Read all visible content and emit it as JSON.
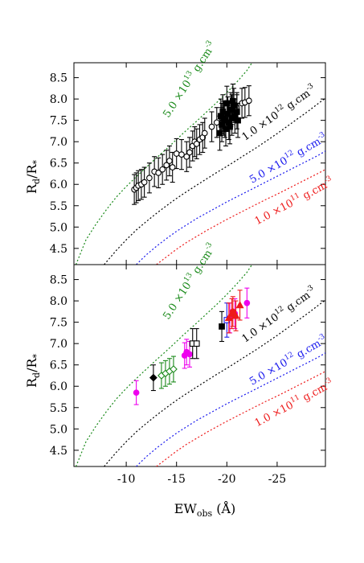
{
  "chart_data": [
    {
      "type": "scatter",
      "panel": "top",
      "xlabel": "",
      "ylabel": "R_d/R_*",
      "xlim": [
        -4.8,
        -29.8
      ],
      "ylim": [
        4.12,
        8.85
      ],
      "yticks": [
        4.5,
        5.0,
        5.5,
        6.0,
        6.5,
        7.0,
        7.5,
        8.0,
        8.5
      ],
      "ytick_labels": [
        "4.5",
        "5.0",
        "5.5",
        "6.0",
        "6.5",
        "7.0",
        "7.5",
        "8.0",
        "8.5"
      ],
      "curves": [
        {
          "label_base": "5.0 ×10",
          "label_exp": "13",
          "label_unit": " g.cm",
          "label_unit_exp": "-3",
          "color": "#1a8a1a",
          "x": [
            -5.0,
            -6.0,
            -7.0,
            -8.0,
            -9.0,
            -10.0,
            -11.0,
            -12.0,
            -13.0,
            -14.0,
            -15.0,
            -16.0,
            -17.0,
            -18.0,
            -19.0,
            -20.0,
            -21.0,
            -22.0,
            -22.5
          ],
          "y": [
            4.12,
            4.7,
            5.07,
            5.4,
            5.7,
            5.95,
            6.18,
            6.4,
            6.62,
            6.83,
            7.05,
            7.27,
            7.48,
            7.7,
            7.92,
            8.15,
            8.4,
            8.67,
            8.85
          ]
        },
        {
          "label_base": "1.0 ×10",
          "label_exp": "12",
          "label_unit": " g.cm",
          "label_unit_exp": "-3",
          "color": "#000000",
          "x": [
            -7.8,
            -9.0,
            -10.0,
            -11.0,
            -12.0,
            -13.0,
            -14.0,
            -15.0,
            -16.0,
            -17.0,
            -18.0,
            -19.0,
            -20.0,
            -21.0,
            -22.0,
            -23.0,
            -24.0,
            -25.0,
            -26.0,
            -27.0,
            -28.0,
            -29.0,
            -29.8
          ],
          "y": [
            4.12,
            4.45,
            4.7,
            4.93,
            5.13,
            5.32,
            5.5,
            5.67,
            5.83,
            5.98,
            6.13,
            6.28,
            6.42,
            6.57,
            6.72,
            6.87,
            7.03,
            7.19,
            7.36,
            7.53,
            7.7,
            7.88,
            8.02
          ]
        },
        {
          "label_base": "5.0 ×10",
          "label_exp": "12",
          "label_unit": " g.cm",
          "label_unit_exp": "-3",
          "color": "#1a1aee",
          "x": [
            -11.0,
            -12.0,
            -13.0,
            -14.0,
            -15.0,
            -16.0,
            -17.0,
            -18.0,
            -19.0,
            -20.0,
            -21.0,
            -22.0,
            -23.0,
            -24.0,
            -25.0,
            -26.0,
            -27.0,
            -28.0,
            -29.0,
            -29.8
          ],
          "y": [
            4.12,
            4.35,
            4.55,
            4.73,
            4.9,
            5.05,
            5.2,
            5.33,
            5.46,
            5.59,
            5.71,
            5.83,
            5.95,
            6.07,
            6.19,
            6.31,
            6.43,
            6.55,
            6.67,
            6.78
          ]
        },
        {
          "label_base": "1.0 ×10",
          "label_exp": "11",
          "label_unit": " g.cm",
          "label_unit_exp": "-3",
          "color": "#ee1a1a",
          "x": [
            -13.0,
            -14.0,
            -15.0,
            -16.0,
            -17.0,
            -18.0,
            -19.0,
            -20.0,
            -21.0,
            -22.0,
            -23.0,
            -24.0,
            -25.0,
            -26.0,
            -27.0,
            -28.0,
            -29.0,
            -29.8
          ],
          "y": [
            4.12,
            4.3,
            4.48,
            4.64,
            4.78,
            4.92,
            5.05,
            5.18,
            5.3,
            5.42,
            5.54,
            5.66,
            5.77,
            5.89,
            6.01,
            6.13,
            6.25,
            6.35
          ]
        }
      ],
      "series": [
        {
          "name": "",
          "marker": "open-circle",
          "color": "#000000",
          "points": [
            {
              "x": -10.8,
              "y": 5.88,
              "err": 0.35
            },
            {
              "x": -11.0,
              "y": 5.92,
              "err": 0.35
            },
            {
              "x": -11.2,
              "y": 5.97,
              "err": 0.35
            },
            {
              "x": -11.5,
              "y": 6.0,
              "err": 0.35
            },
            {
              "x": -11.8,
              "y": 6.05,
              "err": 0.35
            },
            {
              "x": -12.3,
              "y": 6.15,
              "err": 0.35
            },
            {
              "x": -12.8,
              "y": 6.3,
              "err": 0.35
            },
            {
              "x": -13.2,
              "y": 6.27,
              "err": 0.35
            },
            {
              "x": -13.6,
              "y": 6.35,
              "err": 0.35
            },
            {
              "x": -14.0,
              "y": 6.45,
              "err": 0.35
            },
            {
              "x": -14.3,
              "y": 6.55,
              "err": 0.35
            },
            {
              "x": -14.6,
              "y": 6.4,
              "err": 0.35
            },
            {
              "x": -15.0,
              "y": 6.72,
              "err": 0.35
            },
            {
              "x": -15.5,
              "y": 6.7,
              "err": 0.35
            },
            {
              "x": -16.0,
              "y": 6.65,
              "err": 0.35
            },
            {
              "x": -16.3,
              "y": 6.75,
              "err": 0.35
            },
            {
              "x": -16.6,
              "y": 6.9,
              "err": 0.35
            },
            {
              "x": -16.8,
              "y": 7.0,
              "err": 0.35
            },
            {
              "x": -17.0,
              "y": 6.95,
              "err": 0.35
            },
            {
              "x": -17.3,
              "y": 7.05,
              "err": 0.35
            },
            {
              "x": -17.6,
              "y": 7.1,
              "err": 0.35
            },
            {
              "x": -17.8,
              "y": 7.2,
              "err": 0.35
            },
            {
              "x": -18.5,
              "y": 7.35,
              "err": 0.35
            },
            {
              "x": -19.0,
              "y": 7.45,
              "err": 0.35
            },
            {
              "x": -19.5,
              "y": 7.55,
              "err": 0.35
            },
            {
              "x": -20.5,
              "y": 7.75,
              "err": 0.35
            },
            {
              "x": -21.0,
              "y": 7.8,
              "err": 0.35
            },
            {
              "x": -21.5,
              "y": 7.9,
              "err": 0.35
            },
            {
              "x": -21.8,
              "y": 7.92,
              "err": 0.35
            },
            {
              "x": -22.2,
              "y": 7.96,
              "err": 0.35
            }
          ]
        },
        {
          "name": "",
          "marker": "filled-square",
          "color": "#000000",
          "points": [
            {
              "x": -19.3,
              "y": 7.2,
              "err": 0.4
            },
            {
              "x": -19.5,
              "y": 7.4,
              "err": 0.4
            },
            {
              "x": -19.7,
              "y": 7.55,
              "err": 0.4
            },
            {
              "x": -19.9,
              "y": 7.3,
              "err": 0.4
            },
            {
              "x": -20.1,
              "y": 7.65,
              "err": 0.4
            },
            {
              "x": -20.2,
              "y": 7.45,
              "err": 0.4
            },
            {
              "x": -20.4,
              "y": 7.75,
              "err": 0.4
            },
            {
              "x": -20.5,
              "y": 7.55,
              "err": 0.4
            },
            {
              "x": -20.7,
              "y": 7.85,
              "err": 0.4
            },
            {
              "x": -20.8,
              "y": 7.6,
              "err": 0.4
            },
            {
              "x": -21.0,
              "y": 7.7,
              "err": 0.4
            },
            {
              "x": -19.6,
              "y": 7.7,
              "err": 0.4
            },
            {
              "x": -20.0,
              "y": 7.9,
              "err": 0.4
            },
            {
              "x": -20.3,
              "y": 7.35,
              "err": 0.4
            },
            {
              "x": -19.8,
              "y": 7.5,
              "err": 0.4
            },
            {
              "x": -20.6,
              "y": 7.95,
              "err": 0.4
            },
            {
              "x": -19.4,
              "y": 7.6,
              "err": 0.4
            },
            {
              "x": -21.1,
              "y": 7.5,
              "err": 0.4
            }
          ]
        }
      ]
    },
    {
      "type": "scatter",
      "panel": "bottom",
      "xlabel": "EW_obs (Å)",
      "ylabel": "R_d/R_*",
      "xlim": [
        -4.8,
        -29.8
      ],
      "ylim": [
        4.12,
        8.85
      ],
      "yticks": [
        4.5,
        5.0,
        5.5,
        6.0,
        6.5,
        7.0,
        7.5,
        8.0,
        8.5
      ],
      "ytick_labels": [
        "4.5",
        "5.0",
        "5.5",
        "6.0",
        "6.5",
        "7.0",
        "7.5",
        "8.0",
        "8.5"
      ],
      "xticks": [
        -10,
        -15,
        -20,
        -25
      ],
      "xtick_labels": [
        "-10",
        "-15",
        "-20",
        "-25"
      ],
      "curves": "same as top panel",
      "series": [
        {
          "name": "",
          "marker": "filled-circle",
          "color": "#ee00ee",
          "points": [
            {
              "x": -11.0,
              "y": 5.85,
              "err": 0.28
            },
            {
              "x": -15.8,
              "y": 6.72,
              "err": 0.3
            },
            {
              "x": -16.0,
              "y": 6.8,
              "err": 0.3
            },
            {
              "x": -16.3,
              "y": 6.75,
              "err": 0.3
            },
            {
              "x": -20.3,
              "y": 7.6,
              "err": 0.35
            },
            {
              "x": -20.8,
              "y": 7.7,
              "err": 0.35
            },
            {
              "x": -22.0,
              "y": 7.95,
              "err": 0.35
            }
          ]
        },
        {
          "name": "",
          "marker": "open-diamond",
          "color": "#1a8a1a",
          "points": [
            {
              "x": -13.5,
              "y": 6.25,
              "err": 0.3
            },
            {
              "x": -13.9,
              "y": 6.3,
              "err": 0.3
            },
            {
              "x": -14.3,
              "y": 6.35,
              "err": 0.3
            },
            {
              "x": -14.7,
              "y": 6.4,
              "err": 0.3
            }
          ]
        },
        {
          "name": "",
          "marker": "filled-diamond",
          "color": "#000000",
          "points": [
            {
              "x": -12.7,
              "y": 6.2,
              "err": 0.3
            }
          ]
        },
        {
          "name": "",
          "marker": "open-square",
          "color": "#000000",
          "points": [
            {
              "x": -16.6,
              "y": 7.0,
              "err": 0.35
            },
            {
              "x": -17.0,
              "y": 7.0,
              "err": 0.35
            }
          ]
        },
        {
          "name": "",
          "marker": "filled-square",
          "color": "#000000",
          "points": [
            {
              "x": -19.5,
              "y": 7.4,
              "err": 0.35
            }
          ]
        },
        {
          "name": "",
          "marker": "open-square",
          "color": "#1a1aee",
          "points": [
            {
              "x": -20.0,
              "y": 7.55,
              "err": 0.4
            }
          ]
        },
        {
          "name": "",
          "marker": "filled-triangle",
          "color": "#ee1a1a",
          "points": [
            {
              "x": -20.2,
              "y": 7.6,
              "err": 0.35
            },
            {
              "x": -20.5,
              "y": 7.7,
              "err": 0.35
            },
            {
              "x": -20.9,
              "y": 7.65,
              "err": 0.35
            },
            {
              "x": -21.3,
              "y": 7.9,
              "err": 0.35
            }
          ]
        },
        {
          "name": "",
          "marker": "filled-circle",
          "color": "#ee1a1a",
          "points": [
            {
              "x": -20.6,
              "y": 7.75,
              "err": 0.35
            }
          ]
        }
      ]
    }
  ],
  "labels": {
    "ylabel_main": "R",
    "ylabel_sub1": "d",
    "ylabel_slash": "/R",
    "ylabel_sub2": "*",
    "xlabel_main": "EW",
    "xlabel_sub": "obs",
    "xlabel_unit": " (Å)"
  }
}
